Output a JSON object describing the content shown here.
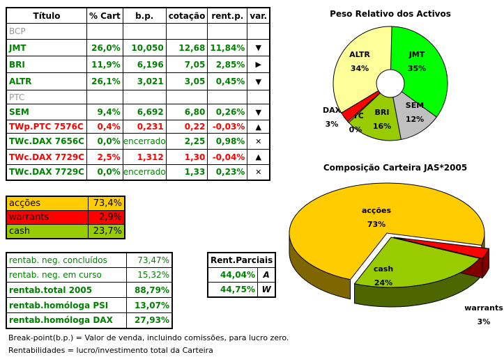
{
  "table": {
    "headers": [
      "Título",
      "% Cart",
      "b.p.",
      "cotação",
      "rent.p.",
      "var."
    ],
    "rows": [
      {
        "group": "BCP"
      },
      {
        "name": "JMT",
        "cart": "26,0%",
        "bp": "10,050",
        "cot": "12,68",
        "rent": "11,84%",
        "var": "▼",
        "color": "g"
      },
      {
        "name": "BRI",
        "cart": "11,9%",
        "bp": "6,196",
        "cot": "7,05",
        "rent": "2,85%",
        "var": "▶",
        "color": "g"
      },
      {
        "name": "ALTR",
        "cart": "26,1%",
        "bp": "3,021",
        "cot": "3,05",
        "rent": "0,45%",
        "var": "▼",
        "color": "g"
      },
      {
        "group": "PTC"
      },
      {
        "name": "SEM",
        "cart": "9,4%",
        "bp": "6,692",
        "cot": "6,80",
        "rent": "0,26%",
        "var": "▼",
        "color": "g"
      },
      {
        "name": "TWp.PTC 7576C",
        "cart": "0,4%",
        "bp": "0,231",
        "cot": "0,22",
        "rent": "-0,03%",
        "var": "▲",
        "color": "r"
      },
      {
        "name": "TWc.DAX 7656C",
        "cart": "0,0%",
        "bp": "encerrado",
        "cot": "2,25",
        "rent": "0,98%",
        "var": "✕",
        "color": "g"
      },
      {
        "name": "TWc.DAX 7729C",
        "cart": "2,5%",
        "bp": "1,312",
        "cot": "1,30",
        "rent": "-0,04%",
        "var": "▲",
        "color": "r"
      },
      {
        "name": "TWc.DAX 7729C",
        "cart": "0,0%",
        "bp": "encerrado",
        "cot": "1,33",
        "rent": "0,23%",
        "var": "✕",
        "color": "g"
      }
    ]
  },
  "allocation": [
    {
      "label": "acções",
      "value": "73,4%",
      "color": "#ffcc00"
    },
    {
      "label": "warrants",
      "value": "2,9%",
      "color": "#ff0000"
    },
    {
      "label": "cash",
      "value": "23,7%",
      "color": "#99cc00"
    }
  ],
  "rentab": [
    {
      "label": "rentab. neg. concluídos",
      "value": "73,47%",
      "bold": false
    },
    {
      "label": "rentab. neg. em curso",
      "value": "15,32%",
      "bold": false
    },
    {
      "label": "rentab.total 2005",
      "value": "88,79%",
      "bold": true
    },
    {
      "label": "rentab.homóloga PSI",
      "value": "13,07%",
      "bold": true
    },
    {
      "label": "rentab.homóloga DAX",
      "value": "27,93%",
      "bold": true
    }
  ],
  "parciais": {
    "title": "Rent.Parciais",
    "rows": [
      {
        "value": "44,04%",
        "key": "A"
      },
      {
        "value": "44,75%",
        "key": "W"
      }
    ]
  },
  "notes": [
    "Break-point(b.p.) = Valor de venda, incluindo comissões, para lucro zero.",
    "Rentabilidades = lucro/investimento total da Carteira"
  ],
  "chart_data": [
    {
      "type": "pie",
      "title": "Peso Relativo dos Activos",
      "categories": [
        "JMT",
        "SEM",
        "BRI",
        "PTC",
        "DAX",
        "ALTR"
      ],
      "values": [
        35,
        12,
        16,
        0,
        3,
        34
      ],
      "labels": [
        "35%",
        "12%",
        "16%",
        "0%",
        "3%",
        "34%"
      ],
      "colors": [
        "#00ff00",
        "#c0c0c0",
        "#99cc00",
        "#ffcc00",
        "#ff0000",
        "#ffff99"
      ]
    },
    {
      "type": "pie",
      "title": "Composição Carteira JAS*2005",
      "categories": [
        "acções",
        "cash",
        "warrants"
      ],
      "values": [
        73,
        24,
        3
      ],
      "labels": [
        "73%",
        "24%",
        "3%"
      ],
      "colors": [
        "#ffcc00",
        "#99cc00",
        "#ff0000"
      ]
    }
  ]
}
